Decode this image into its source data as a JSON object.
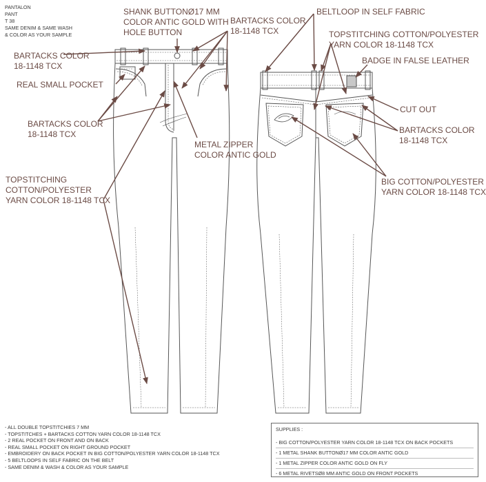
{
  "header": {
    "lines": [
      "PANTALON",
      "PANT",
      "T 38",
      "SAME DENIM & SAME WASH",
      "& COLOR AS YOUR SAMPLE"
    ]
  },
  "callouts": {
    "shank_button": [
      "SHANK BUTTONØ17 MM",
      "COLOR ANTIC GOLD WITH",
      "HOLE BUTTON"
    ],
    "bartacks_top": [
      "BARTACKS COLOR",
      "18-1148 TCX"
    ],
    "bartacks_left": [
      "BARTACKS COLOR",
      "18-1148 TCX"
    ],
    "real_small_pocket": [
      "REAL SMALL POCKET"
    ],
    "bartacks_mid": [
      "BARTACKS COLOR",
      "18-1148 TCX"
    ],
    "metal_zipper": [
      "METAL ZIPPER",
      "COLOR ANTIC GOLD"
    ],
    "topstitching_front": [
      "TOPSTITCHING",
      "COTTON/POLYESTER",
      "YARN COLOR 18-1148 TCX"
    ],
    "beltloop": [
      "BELTLOOP IN SELF FABRIC"
    ],
    "topstitching_back": [
      "TOPSTITCHING COTTON/POLYESTER",
      "YARN COLOR 18-1148 TCX"
    ],
    "badge": [
      "BADGE IN FALSE LEATHER"
    ],
    "cut_out": [
      "CUT OUT"
    ],
    "bartacks_back": [
      "BARTACKS COLOR",
      "18-1148 TCX"
    ],
    "big_cotton": [
      "BIG COTTON/POLYESTER",
      "YARN COLOR 18-1148 TCX"
    ]
  },
  "notes": [
    "- ALL DOUBLE TOPSTITCHIES 7 MM",
    "- TOPSTITCHES + BARTACKS COTTON YARN COLOR 18-1148 TCX",
    "- 2 REAL POCKET ON FRONT AND ON BACK",
    "- REAL SMALL POCKET ON RIGHT GROUND POCKET",
    "- EMBROIDERY ON BACK POCKET IN BIG COTTON/POLYESTER YARN COLOR 18-1148 TCX",
    "- 5 BELTLOOPS IN SELF FABRIC ON THE BELT",
    "- SAME DENIM & WASH & COLOR AS YOUR SAMPLE"
  ],
  "supplies": {
    "title": "SUPPLIES :",
    "items": [
      "- BIG COTTON/POLYESTER YARN COLOR 18-1148 TCX ON BACK POCKETS",
      "- 1 METAL SHANK BUTTONØ17 MM COLOR ANTIC GOLD",
      "- 1 METAL ZIPPER COLOR ANTIC GOLD ON FLY",
      "- 6 METAL RIVETSØ8 MM ANTIC GOLD ON FRONT POCKETS"
    ]
  },
  "colors": {
    "label": "#6b4b45",
    "line": "#555555",
    "arrow": "#6b4b45",
    "badge": "#c8c8c8"
  }
}
